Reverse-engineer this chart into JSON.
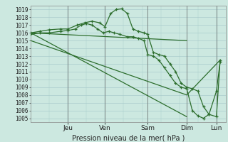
{
  "xlabel": "Pression niveau de la mer( hPa )",
  "bg_color": "#cce8e0",
  "plot_bg_color": "#cce8e0",
  "grid_color": "#aacccc",
  "line_color": "#2d6e2d",
  "ylim": [
    1004.5,
    1019.5
  ],
  "yticks": [
    1005,
    1006,
    1007,
    1008,
    1009,
    1010,
    1011,
    1012,
    1013,
    1014,
    1015,
    1016,
    1017,
    1018,
    1019
  ],
  "day_positions": [
    0.2,
    0.4,
    0.63,
    0.84,
    1.0
  ],
  "day_labels": [
    "Jeu",
    "Ven",
    "Sam",
    "Dim",
    "Lun"
  ],
  "xlim": [
    0.0,
    1.05
  ],
  "lines": [
    {
      "x": [
        0.0,
        0.84
      ],
      "y": [
        1016.0,
        1015.0
      ],
      "markers": false
    },
    {
      "x": [
        0.0,
        0.84
      ],
      "y": [
        1016.0,
        1005.2
      ],
      "markers": false
    },
    {
      "x": [
        0.0,
        0.84,
        1.02
      ],
      "y": [
        1015.0,
        1008.0,
        1012.5
      ],
      "markers": false
    },
    {
      "x": [
        0.0,
        0.05,
        0.1,
        0.16,
        0.2,
        0.25,
        0.29,
        0.33,
        0.37,
        0.4,
        0.43,
        0.46,
        0.49,
        0.52,
        0.55,
        0.58,
        0.61,
        0.63,
        0.66,
        0.69,
        0.72,
        0.75,
        0.78,
        0.81,
        0.84,
        0.87,
        0.9,
        0.93,
        0.96,
        1.0,
        1.02
      ],
      "y": [
        1016.0,
        1016.2,
        1016.4,
        1016.5,
        1016.5,
        1017.0,
        1017.3,
        1017.5,
        1017.3,
        1016.8,
        1018.5,
        1019.0,
        1019.1,
        1018.5,
        1016.5,
        1016.2,
        1016.0,
        1015.8,
        1013.5,
        1013.2,
        1013.0,
        1012.0,
        1011.0,
        1009.5,
        1009.0,
        1008.8,
        1008.5,
        1006.5,
        1005.5,
        1005.2,
        1012.5
      ],
      "markers": true
    },
    {
      "x": [
        0.0,
        0.05,
        0.1,
        0.16,
        0.2,
        0.24,
        0.27,
        0.3,
        0.33,
        0.36,
        0.39,
        0.42,
        0.45,
        0.48,
        0.52,
        0.55,
        0.58,
        0.61,
        0.63,
        0.66,
        0.69,
        0.72,
        0.75,
        0.78,
        0.81,
        0.84,
        0.87,
        0.9,
        0.93,
        0.96,
        1.0,
        1.02
      ],
      "y": [
        1015.8,
        1016.0,
        1016.0,
        1016.2,
        1016.3,
        1016.5,
        1017.0,
        1017.2,
        1017.0,
        1016.5,
        1016.0,
        1016.2,
        1016.0,
        1015.8,
        1015.5,
        1015.5,
        1015.3,
        1015.0,
        1013.2,
        1013.0,
        1012.5,
        1011.5,
        1010.5,
        1009.5,
        1009.0,
        1008.8,
        1006.0,
        1005.3,
        1005.0,
        1005.5,
        1008.5,
        1012.3
      ],
      "markers": true
    }
  ]
}
